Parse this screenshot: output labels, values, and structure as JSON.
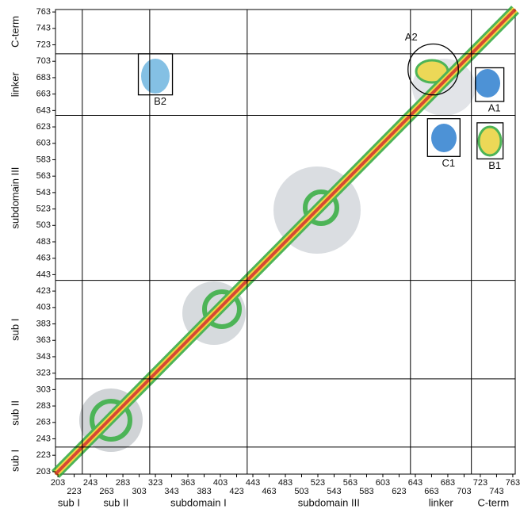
{
  "chart_data": {
    "type": "contact-map",
    "xlim": [
      200,
      766
    ],
    "ylim": [
      200,
      766
    ],
    "xticks": [
      203,
      223,
      243,
      263,
      283,
      303,
      323,
      343,
      363,
      383,
      403,
      423,
      443,
      463,
      483,
      503,
      523,
      543,
      563,
      583,
      603,
      623,
      643,
      663,
      683,
      703,
      723,
      743,
      763
    ],
    "yticks": [
      203,
      223,
      243,
      263,
      283,
      303,
      323,
      343,
      363,
      383,
      403,
      423,
      443,
      463,
      483,
      503,
      523,
      543,
      563,
      583,
      603,
      623,
      643,
      663,
      683,
      703,
      723,
      743,
      763
    ],
    "domain_boundaries": [
      233,
      316,
      436,
      637,
      712
    ],
    "x_domain_labels": [
      "sub I",
      "sub II",
      "subdomain I",
      "subdomain III",
      "linker",
      "C-term"
    ],
    "y_domain_labels": [
      "sub I",
      "sub II",
      "sub I",
      "subdomain III",
      "linker",
      "C-term"
    ],
    "annotations": [
      {
        "label": "A2",
        "shape": "circle",
        "x": [
          634,
          696
        ],
        "y": [
          662,
          724
        ]
      },
      {
        "label": "A1",
        "shape": "box",
        "x": [
          717,
          752
        ],
        "y": [
          654,
          695
        ]
      },
      {
        "label": "B2",
        "shape": "box",
        "x": [
          302,
          344
        ],
        "y": [
          662,
          712
        ]
      },
      {
        "label": "C1",
        "shape": "box",
        "x": [
          658,
          698
        ],
        "y": [
          587,
          633
        ]
      },
      {
        "label": "B1",
        "shape": "box",
        "x": [
          719,
          751
        ],
        "y": [
          584,
          628
        ]
      }
    ]
  }
}
